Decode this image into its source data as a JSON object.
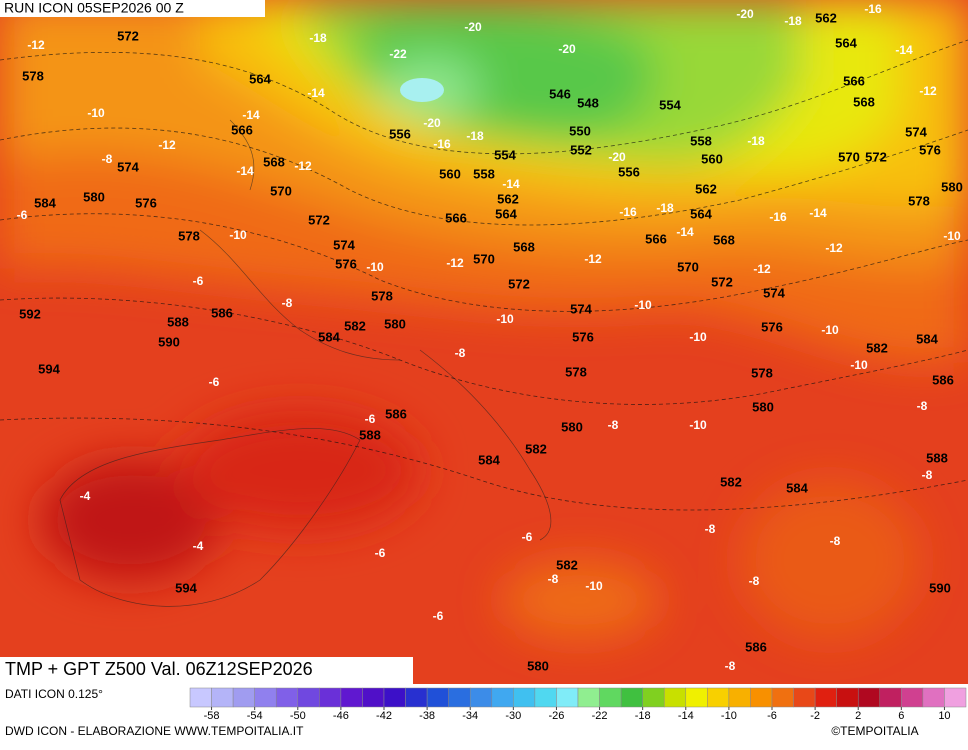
{
  "header": {
    "run": "RUN ICON 05SEP2026 00 Z",
    "title": "TMP + GPT Z500 Val. 06Z12SEP2026"
  },
  "map": {
    "geopotential_labels": [
      572,
      578,
      564,
      566,
      574,
      568,
      570,
      584,
      580,
      576,
      572,
      578,
      574,
      576,
      578,
      592,
      588,
      586,
      590,
      584,
      582,
      580,
      594,
      586,
      588,
      556,
      560,
      558,
      554,
      546,
      548,
      550,
      552,
      556,
      554,
      562,
      564,
      566,
      568,
      570,
      572,
      574,
      576,
      578,
      580,
      582,
      584,
      558,
      560,
      562,
      564,
      566,
      568,
      570,
      572,
      574,
      576,
      578,
      580,
      582,
      584,
      562,
      564,
      566,
      568,
      570,
      572,
      574,
      576,
      578,
      580,
      582,
      584,
      586,
      588,
      590,
      594,
      582,
      586,
      580
    ],
    "temperature_labels": [
      -12,
      -18,
      -14,
      -10,
      -12,
      -14,
      -14,
      -12,
      -8,
      -6,
      -10,
      -10,
      -8,
      -6,
      -6,
      -22,
      -20,
      -20,
      -16,
      -18,
      -20,
      -20,
      -14,
      -16,
      -18,
      -14,
      -12,
      -12,
      -10,
      -10,
      -8,
      -10,
      -12,
      -20,
      -18,
      -16,
      -14,
      -12,
      -18,
      -16,
      -14,
      -12,
      -10,
      -10,
      -10,
      -8,
      -8,
      -6,
      -8,
      -10,
      -4,
      -4,
      -6,
      -6,
      -8,
      -10,
      -6,
      -8,
      -8,
      -8,
      -8
    ]
  },
  "colorbar": {
    "source": "DATI ICON 0.125°",
    "ticks": [
      -58,
      -54,
      -50,
      -46,
      -42,
      -38,
      -34,
      -30,
      -26,
      -22,
      -18,
      -14,
      -10,
      -6,
      -2,
      2,
      6,
      10
    ],
    "colors": [
      "#c8c8ff",
      "#b4b4f8",
      "#a09cf0",
      "#9080ee",
      "#8060e8",
      "#7048e0",
      "#6a30d8",
      "#6018d0",
      "#5010c8",
      "#3c10c8",
      "#2830d0",
      "#2050d8",
      "#2a6ee0",
      "#3c8ce8",
      "#40a8f0",
      "#40c0f0",
      "#50d8f0",
      "#80ecf8",
      "#90ee90",
      "#60d860",
      "#40c040",
      "#80d020",
      "#c8e000",
      "#f0f000",
      "#f8d000",
      "#f8b000",
      "#f89000",
      "#f07010",
      "#e84818",
      "#e02010",
      "#c81010",
      "#b00820",
      "#c02060",
      "#d04090",
      "#e070c0",
      "#f0a0e0"
    ]
  },
  "footer": {
    "credit": "DWD ICON - ELABORAZIONE WWW.TEMPOITALIA.IT",
    "logo": "©TEMPOITALIA"
  }
}
